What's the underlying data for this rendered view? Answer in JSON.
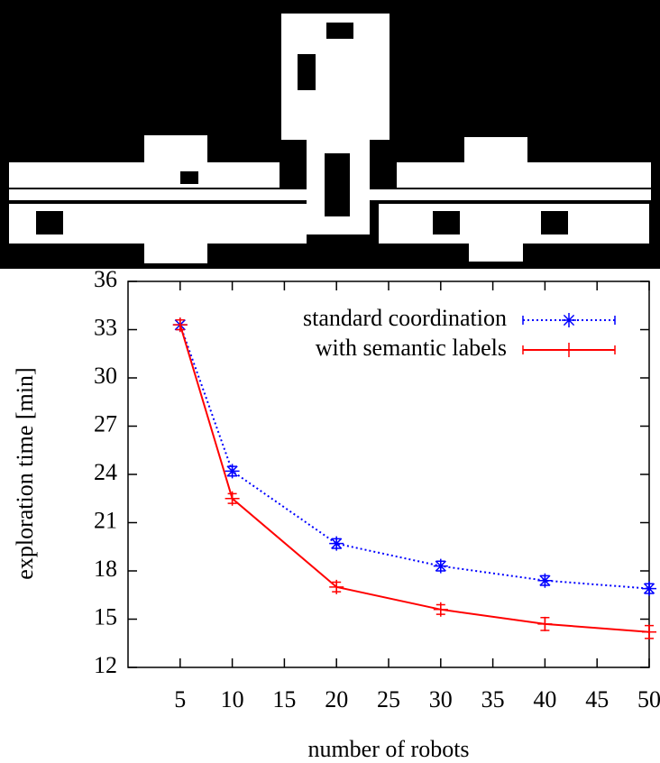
{
  "chart_data": {
    "type": "line",
    "x_label": "number of robots",
    "y_label": "exploration time [min]",
    "x": [
      5,
      10,
      20,
      30,
      40,
      50
    ],
    "series": [
      {
        "name": "standard coordination",
        "color": "#0000ff",
        "marker": "star",
        "dash": "dotted",
        "values": [
          33.3,
          24.2,
          19.7,
          18.3,
          17.4,
          16.9
        ],
        "errors": [
          0.3,
          0.3,
          0.3,
          0.3,
          0.3,
          0.3
        ]
      },
      {
        "name": "with semantic labels",
        "color": "#ff0000",
        "marker": "plus",
        "dash": "solid",
        "values": [
          33.3,
          22.5,
          17.0,
          15.6,
          14.7,
          14.2
        ],
        "errors": [
          0.3,
          0.3,
          0.3,
          0.3,
          0.4,
          0.4
        ]
      }
    ],
    "xlim": [
      0,
      50
    ],
    "xticks": [
      5,
      10,
      15,
      20,
      25,
      30,
      35,
      40,
      45,
      50
    ],
    "ylim": [
      12,
      36
    ],
    "yticks": [
      12,
      15,
      18,
      21,
      24,
      27,
      30,
      33,
      36
    ],
    "legend": "top-right",
    "grid": false
  }
}
